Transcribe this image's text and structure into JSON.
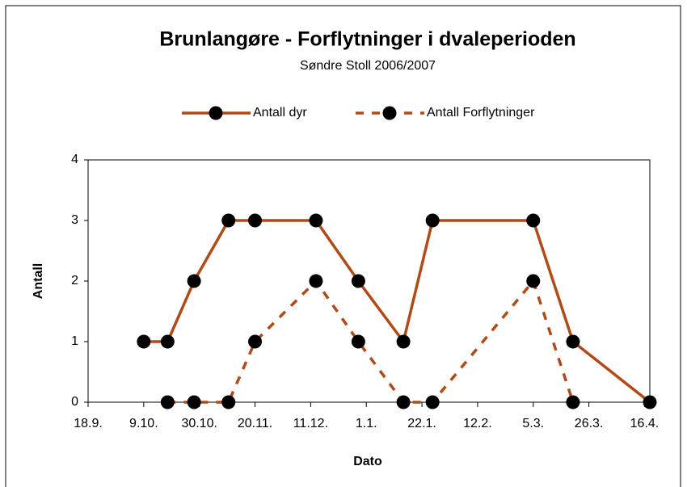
{
  "chart_data": {
    "type": "line",
    "title": "Brunlangøre - Forflytninger i dvaleperioden",
    "subtitle": "Søndre Stoll 2006/2007",
    "x_label": "Dato",
    "y_label": "Antall",
    "x": [
      21,
      30,
      40,
      53,
      63,
      86,
      102,
      119,
      130,
      168,
      183,
      212
    ],
    "series": [
      {
        "name": "Antall dyr",
        "color": "#b04a17",
        "dash": false,
        "values": [
          1,
          1,
          2,
          3,
          3,
          3,
          2,
          1,
          3,
          3,
          1,
          0
        ]
      },
      {
        "name": "Antall Forflytninger",
        "color": "#b04a17",
        "dash": true,
        "values": [
          null,
          0,
          0,
          0,
          1,
          2,
          1,
          0,
          0,
          2,
          0,
          null
        ]
      }
    ],
    "xlim": [
      0,
      212
    ],
    "xticks": [
      {
        "value": 0,
        "label": "18.9."
      },
      {
        "value": 21,
        "label": "9.10."
      },
      {
        "value": 42,
        "label": "30.10."
      },
      {
        "value": 63,
        "label": "20.11."
      },
      {
        "value": 84,
        "label": "11.12."
      },
      {
        "value": 105,
        "label": "1.1."
      },
      {
        "value": 126,
        "label": "22.1."
      },
      {
        "value": 147,
        "label": "12.2."
      },
      {
        "value": 168,
        "label": "5.3."
      },
      {
        "value": 189,
        "label": "26.3."
      },
      {
        "value": 210,
        "label": "16.4."
      }
    ],
    "ylim": [
      0,
      4
    ],
    "yticks": [
      0,
      1,
      2,
      3,
      4
    ],
    "legend": "top"
  }
}
